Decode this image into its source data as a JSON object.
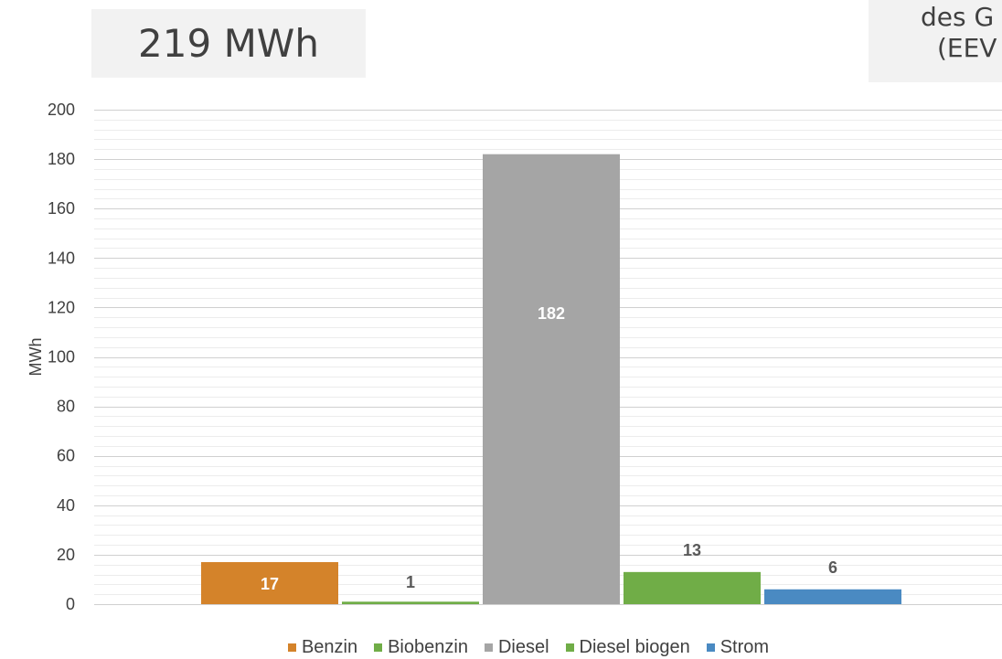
{
  "header": {
    "total_label": "219 MWh",
    "note_line1": "des G",
    "note_line2": "(EEV"
  },
  "chart_data": {
    "type": "bar",
    "title": "",
    "xlabel": "",
    "ylabel": "MWh",
    "ylim": [
      0,
      200
    ],
    "yticks": [
      0,
      20,
      40,
      60,
      80,
      100,
      120,
      140,
      160,
      180,
      200
    ],
    "grid": true,
    "legend_position": "bottom",
    "categories": [
      "Benzin",
      "Biobenzin",
      "Diesel",
      "Diesel biogen",
      "Strom"
    ],
    "values": [
      17,
      1,
      182,
      13,
      6
    ],
    "data_labels": [
      "17",
      "1",
      "182",
      "13",
      "6"
    ],
    "colors": [
      "#d4832a",
      "#70ad47",
      "#a5a5a5",
      "#70ad47",
      "#4a8ac2"
    ]
  },
  "legend": [
    {
      "label": "Benzin",
      "color": "#d4832a"
    },
    {
      "label": "Biobenzin",
      "color": "#70ad47"
    },
    {
      "label": "Diesel",
      "color": "#a5a5a5"
    },
    {
      "label": "Diesel biogen",
      "color": "#70ad47"
    },
    {
      "label": "Strom",
      "color": "#4a8ac2"
    }
  ]
}
